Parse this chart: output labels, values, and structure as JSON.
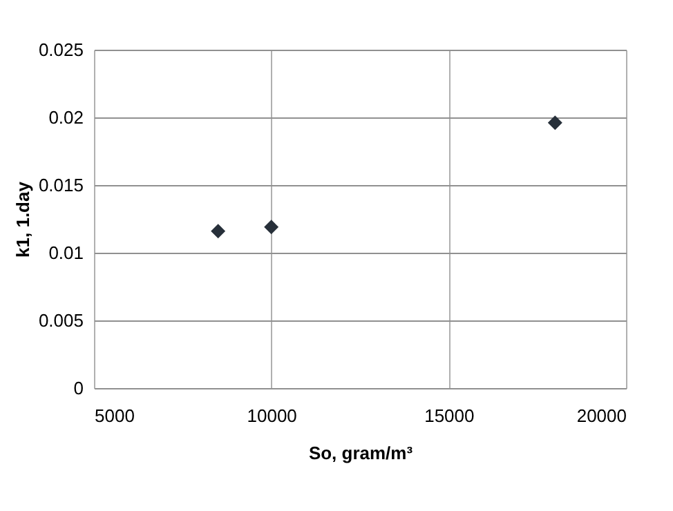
{
  "chart_data": {
    "type": "scatter",
    "xlabel": "So, gram/m³",
    "ylabel": "k1, 1.day",
    "x": [
      8500,
      10000,
      18000
    ],
    "series": [
      {
        "color": "#27303a",
        "values": [
          0.0116,
          0.0119,
          0.0196
        ]
      }
    ],
    "xlim": [
      5000,
      20000
    ],
    "xticks": [
      5000,
      10000,
      15000,
      20000
    ],
    "ylim": [
      0,
      0.025
    ],
    "yticks": [
      0,
      0.005,
      0.01,
      0.015,
      0.02,
      0.025
    ],
    "grid": true,
    "marker": "diamond",
    "legend": false
  }
}
